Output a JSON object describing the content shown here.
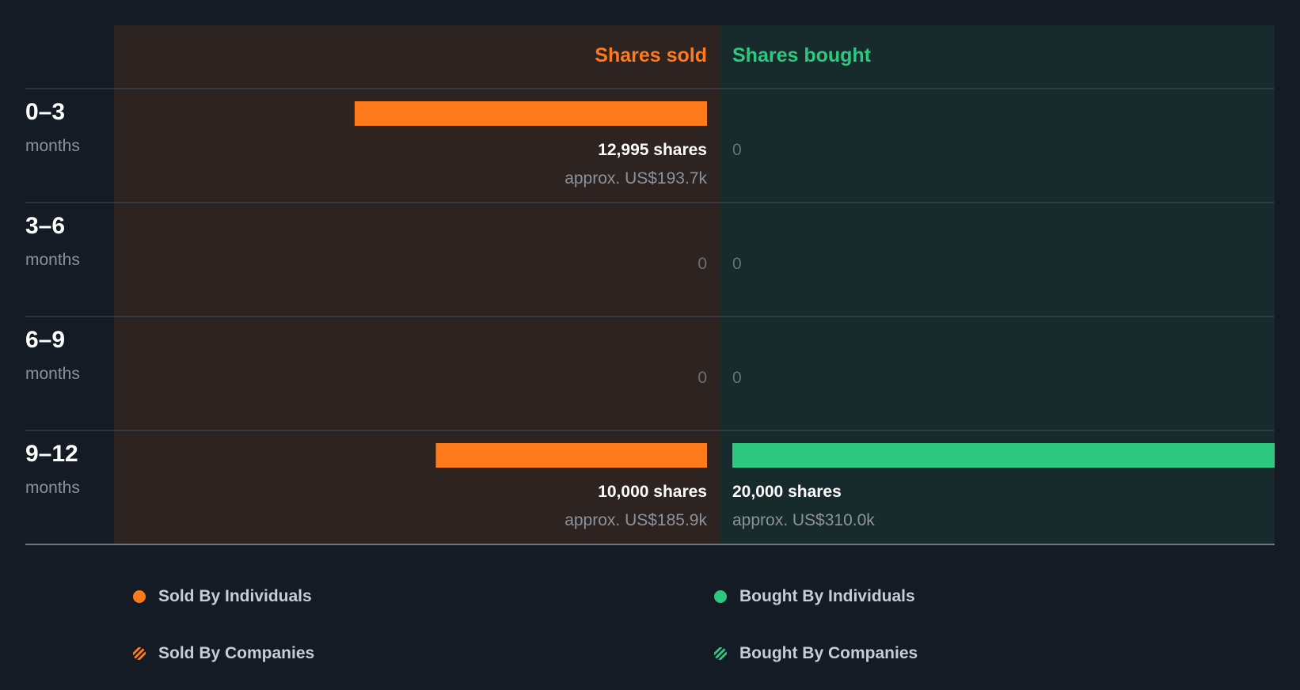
{
  "chart_data": {
    "type": "bar",
    "orientation": "horizontal-diverging",
    "headers": {
      "sold": "Shares sold",
      "bought": "Shares bought"
    },
    "colors": {
      "sold": "#ff7a1a",
      "bought": "#2ec77f",
      "sold_bg": "#2d2320",
      "bought_bg": "#182b2c",
      "page_bg": "#151b24"
    },
    "max_value": 20000,
    "rows": [
      {
        "period": "0–3",
        "unit": "months",
        "sold": {
          "value": 12995,
          "shares_label": "12,995 shares",
          "approx_label": "approx. US$193.7k",
          "zero_label": ""
        },
        "bought": {
          "value": 0,
          "shares_label": "",
          "approx_label": "",
          "zero_label": "0"
        }
      },
      {
        "period": "3–6",
        "unit": "months",
        "sold": {
          "value": 0,
          "shares_label": "",
          "approx_label": "",
          "zero_label": "0"
        },
        "bought": {
          "value": 0,
          "shares_label": "",
          "approx_label": "",
          "zero_label": "0"
        }
      },
      {
        "period": "6–9",
        "unit": "months",
        "sold": {
          "value": 0,
          "shares_label": "",
          "approx_label": "",
          "zero_label": "0"
        },
        "bought": {
          "value": 0,
          "shares_label": "",
          "approx_label": "",
          "zero_label": "0"
        }
      },
      {
        "period": "9–12",
        "unit": "months",
        "sold": {
          "value": 10000,
          "shares_label": "10,000 shares",
          "approx_label": "approx. US$185.9k",
          "zero_label": ""
        },
        "bought": {
          "value": 20000,
          "shares_label": "20,000 shares",
          "approx_label": "approx. US$310.0k",
          "zero_label": ""
        }
      }
    ]
  },
  "legend": {
    "sold_individuals": "Sold By Individuals",
    "bought_individuals": "Bought By Individuals",
    "sold_companies": "Sold By Companies",
    "bought_companies": "Bought By Companies"
  }
}
